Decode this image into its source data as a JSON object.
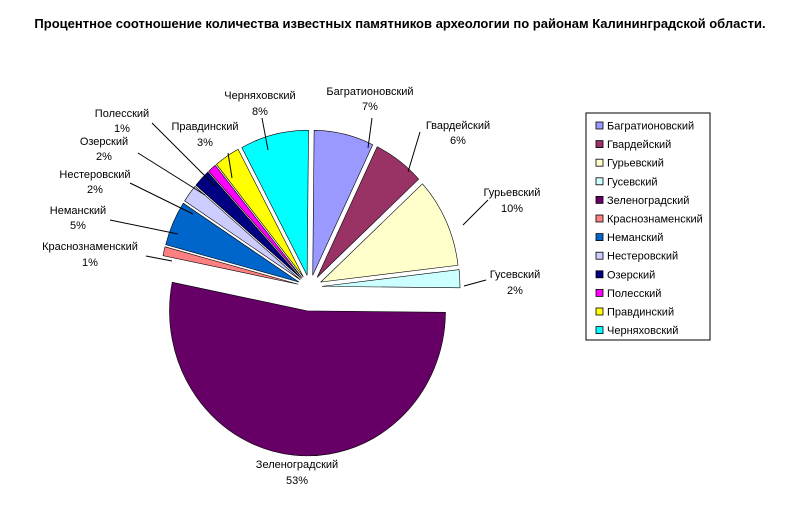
{
  "chart_data": {
    "type": "pie",
    "exploded": true,
    "legend_position": "right",
    "title": "Процентное соотношение количества известных памятников археологии по районам Калининградской области.",
    "slices": [
      {
        "name": "Багратионовский",
        "value": 7,
        "label": "7%",
        "color": "#9999ff"
      },
      {
        "name": "Гвардейский",
        "value": 6,
        "label": "6%",
        "color": "#993366"
      },
      {
        "name": "Гурьевский",
        "value": 10,
        "label": "10%",
        "color": "#ffffcc"
      },
      {
        "name": "Гусевский",
        "value": 2,
        "label": "2%",
        "color": "#ccffff"
      },
      {
        "name": "Зеленоградский",
        "value": 53,
        "label": "53%",
        "color": "#660066"
      },
      {
        "name": "Краснознаменский",
        "value": 1,
        "label": "1%",
        "color": "#ff8080"
      },
      {
        "name": "Неманский",
        "value": 5,
        "label": "5%",
        "color": "#0066cc"
      },
      {
        "name": "Нестеровский",
        "value": 2,
        "label": "2%",
        "color": "#ccccff"
      },
      {
        "name": "Озерский",
        "value": 2,
        "label": "2%",
        "color": "#000080"
      },
      {
        "name": "Полесский",
        "value": 1,
        "label": "1%",
        "color": "#ff00ff"
      },
      {
        "name": "Правдинский",
        "value": 3,
        "label": "3%",
        "color": "#ffff00"
      },
      {
        "name": "Черняховский",
        "value": 8,
        "label": "8%",
        "color": "#00ffff"
      }
    ]
  }
}
